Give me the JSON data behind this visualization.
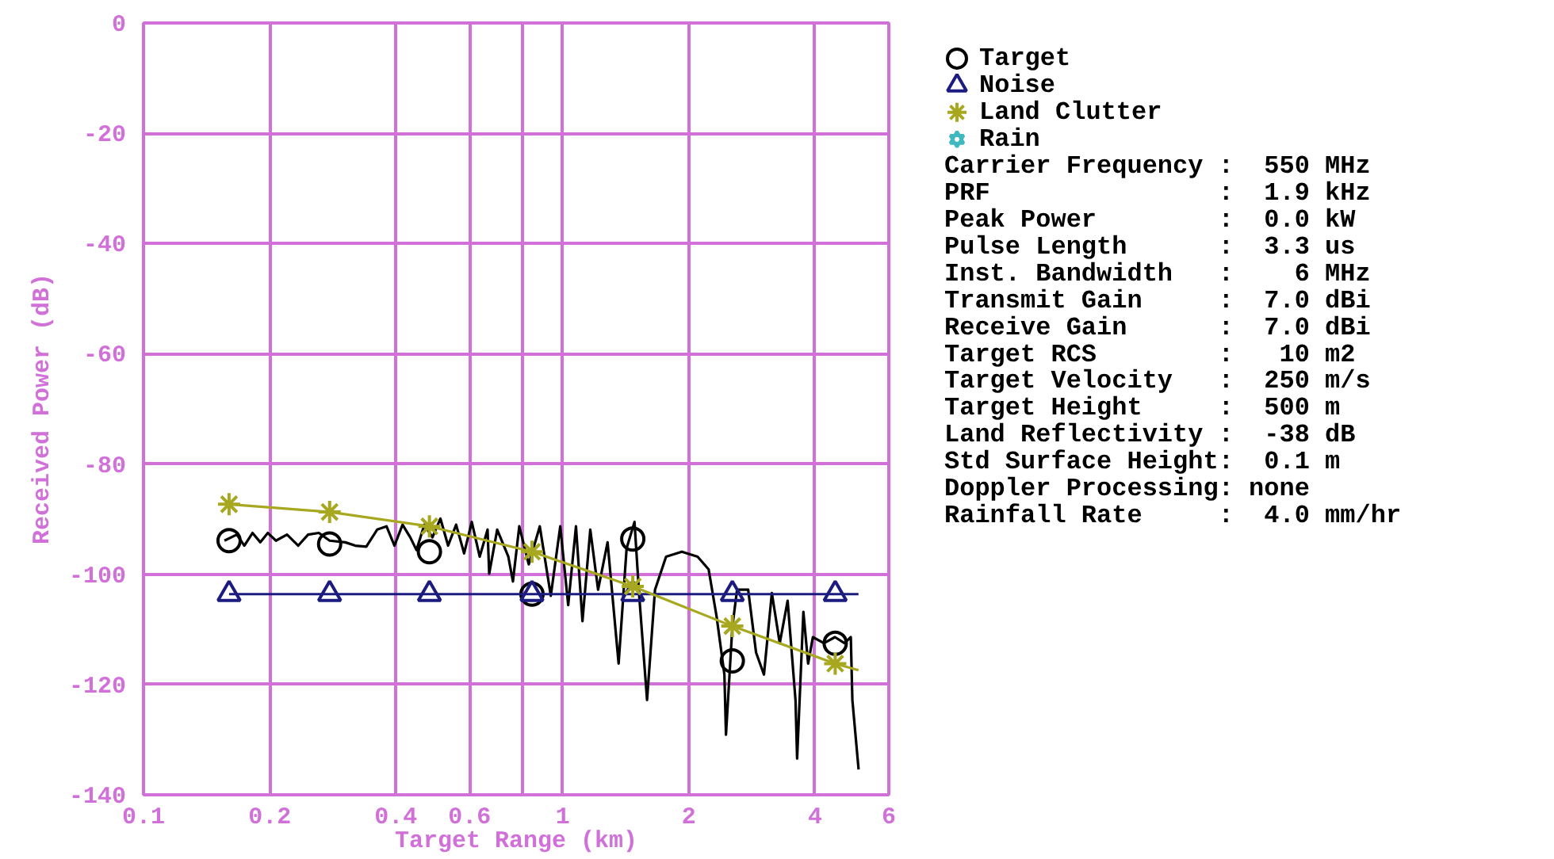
{
  "chart_data": [
    {
      "type": "line",
      "xlabel": "Target Range (km)",
      "ylabel": "Received Power (dB)",
      "log": "x",
      "grid": true,
      "legend": "right",
      "xlim": [
        0.1,
        6
      ],
      "xticks": [
        0.1,
        0.2,
        0.4,
        0.6,
        {
          "value": 0.8,
          "label": null
        },
        1,
        2,
        4,
        6
      ],
      "ylim": [
        -140,
        0
      ],
      "yticks": [
        0,
        -20,
        -40,
        -60,
        -80,
        -100,
        -120,
        -140
      ],
      "series": [
        {
          "type": "line",
          "color": "#000000",
          "x": [
            0.156,
            0.167,
            0.174,
            0.182,
            0.19,
            0.198,
            0.207,
            0.22,
            0.234,
            0.247,
            0.262,
            0.278,
            0.303,
            0.32,
            0.34,
            0.361,
            0.38,
            0.397,
            0.415,
            0.433,
            0.448,
            0.468,
            0.489,
            0.511,
            0.533,
            0.557,
            0.582,
            0.607,
            0.634,
            0.662,
            0.668,
            0.698,
            0.742,
            0.761,
            0.788,
            0.83,
            0.882,
            0.937,
            0.987,
            1.031,
            1.076,
            1.115,
            1.164,
            1.215,
            1.28,
            1.36,
            1.421,
            1.484,
            1.523,
            1.59,
            1.661,
            1.765,
            1.925,
            2.099,
            2.23,
            2.329,
            2.432,
            2.453,
            2.54,
            2.607,
            2.771,
            2.894,
            3.022,
            3.156,
            3.296,
            3.442,
            3.594,
            3.626,
            3.753,
            3.852,
            3.954,
            4.202,
            4.465,
            4.703,
            4.87,
            4.912,
            5.083
          ],
          "values": [
            -93.9,
            -92.8,
            -94.8,
            -92.5,
            -94.2,
            -92.5,
            -93.9,
            -92.8,
            -94.8,
            -92.8,
            -92.5,
            -93.9,
            -94.2,
            -94.8,
            -95.0,
            -91.9,
            -91.3,
            -94.8,
            -91.0,
            -93.3,
            -95.6,
            -91.0,
            -93.3,
            -89.9,
            -94.8,
            -91.0,
            -96.2,
            -90.5,
            -96.8,
            -91.9,
            -99.9,
            -91.9,
            -96.8,
            -101.3,
            -91.3,
            -98.2,
            -91.3,
            -103.9,
            -91.3,
            -105.6,
            -91.3,
            -108.5,
            -91.9,
            -102.8,
            -94.2,
            -116.2,
            -95.3,
            -90.5,
            -103.9,
            -122.8,
            -102.8,
            -96.8,
            -95.9,
            -96.8,
            -99.1,
            -107.6,
            -118.2,
            -129.1,
            -109.6,
            -102.8,
            -102.8,
            -114.2,
            -118.2,
            -103.4,
            -112.5,
            -104.8,
            -122.8,
            -133.4,
            -106.8,
            -116.2,
            -111.4,
            -112.5,
            -111.4,
            -112.5,
            -111.4,
            -122.8,
            -135.4
          ]
        },
        {
          "name": "Target",
          "type": "scatter",
          "marker": "circle",
          "color": "#000000",
          "x": [
            0.16,
            0.278,
            0.481,
            0.845,
            1.47,
            2.54,
            4.47
          ],
          "values": [
            -93.9,
            -94.5,
            -95.9,
            -103.6,
            -93.6,
            -115.7,
            -112.5
          ]
        },
        {
          "type": "line",
          "color": "#1c1c80",
          "x": [
            0.16,
            5.08
          ],
          "values": [
            -103.6,
            -103.6
          ]
        },
        {
          "name": "Noise",
          "type": "scatter",
          "marker": "triangle",
          "color": "#1c1c80",
          "x": [
            0.16,
            0.278,
            0.481,
            0.845,
            1.47,
            2.54,
            4.47
          ],
          "values": [
            -103.6,
            -103.6,
            -103.6,
            -103.6,
            -103.6,
            -103.6,
            -103.6
          ]
        },
        {
          "type": "line",
          "color": "#a8a820",
          "x": [
            0.16,
            0.278,
            0.481,
            0.845,
            1.47,
            2.54,
            4.47,
            5.08
          ],
          "values": [
            -87.3,
            -88.7,
            -91.3,
            -95.9,
            -102.2,
            -109.4,
            -116.2,
            -117.4
          ]
        },
        {
          "name": "Land Clutter",
          "type": "scatter",
          "marker": "cross",
          "color": "#a8a820",
          "x": [
            0.16,
            0.278,
            0.481,
            0.845,
            1.47,
            2.54,
            4.47
          ],
          "values": [
            -87.3,
            -88.7,
            -91.3,
            -95.9,
            -102.2,
            -109.4,
            -116.2
          ]
        },
        {
          "name": "Rain",
          "type": "scatter",
          "marker": "hourglass",
          "color": "#40b8c0"
        }
      ]
    },
    {
      "type": "other",
      "annotations": [
        "Carrier Frequency :  550 MHz",
        "PRF               :  1.9 kHz",
        "Peak Power        :  0.0 kW",
        "Pulse Length      :  3.3 us",
        "Inst. Bandwidth   :    6 MHz",
        "Transmit Gain     :  7.0 dBi",
        "Receive Gain      :  7.0 dBi",
        "Target RCS        :   10 m2",
        "Target Velocity   :  250 m/s",
        "Target Height     :  500 m",
        "Land Reflectivity :  -38 dB",
        "Std Surface Height:  0.1 m",
        "Doppler Processing: none",
        "Rainfall Rate     :  4.0 mm/hr"
      ]
    }
  ]
}
